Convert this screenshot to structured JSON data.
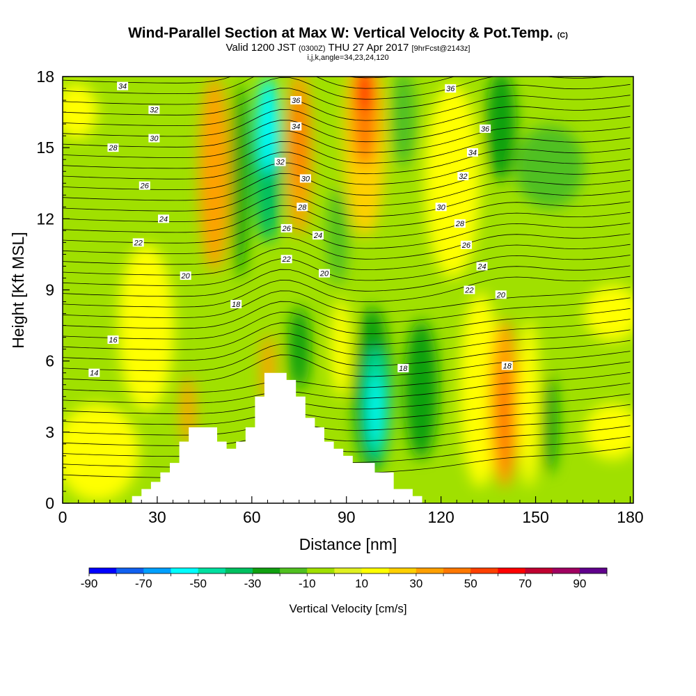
{
  "header": {
    "title": "Wind-Parallel Section at Max W: Vertical Velocity & Pot.Temp.",
    "copyright": "(C)",
    "valid_prefix": "Valid 1200 JST",
    "valid_utc": "(0300Z)",
    "valid_date": "THU 27 Apr 2017",
    "forecast_info": "[9hrFcst@2143z]",
    "params": "i,j,k,angle=34,23,24,120"
  },
  "colorbar": {
    "label": "Vertical Velocity [cm/s]",
    "tick_labels": [
      "-90",
      "-70",
      "-50",
      "-30",
      "-10",
      "10",
      "30",
      "50",
      "70",
      "90"
    ],
    "colors": [
      "#0000ff",
      "#1060f0",
      "#00a0ff",
      "#00ffff",
      "#00e0a0",
      "#00c060",
      "#10a010",
      "#50c020",
      "#a0e000",
      "#e0f020",
      "#ffff00",
      "#ffd000",
      "#ffa000",
      "#ff7800",
      "#ff4000",
      "#ff0000",
      "#c00030",
      "#a00060",
      "#60008c"
    ]
  },
  "chart_data": {
    "type": "heatmap",
    "title": "Wind-Parallel Section at Max W: Vertical Velocity & Pot.Temp.",
    "xlabel": "Distance [nm]",
    "ylabel": "Height [Kft MSL]",
    "xlim": [
      0,
      181
    ],
    "ylim": [
      0,
      18
    ],
    "x_ticks": [
      0,
      30,
      60,
      90,
      120,
      150,
      180
    ],
    "y_ticks": [
      0,
      3,
      6,
      9,
      12,
      15,
      18
    ],
    "contour_variable": "Potential temperature (C)",
    "contour_labels": [
      {
        "text": "34",
        "x": 19,
        "y": 17.6
      },
      {
        "text": "32",
        "x": 29,
        "y": 16.6
      },
      {
        "text": "30",
        "x": 29,
        "y": 15.4
      },
      {
        "text": "28",
        "x": 16,
        "y": 15.0
      },
      {
        "text": "26",
        "x": 26,
        "y": 13.4
      },
      {
        "text": "24",
        "x": 32,
        "y": 12.0
      },
      {
        "text": "22",
        "x": 24,
        "y": 11.0
      },
      {
        "text": "20",
        "x": 39,
        "y": 9.6
      },
      {
        "text": "18",
        "x": 55,
        "y": 8.4
      },
      {
        "text": "16",
        "x": 16,
        "y": 6.9
      },
      {
        "text": "14",
        "x": 10,
        "y": 5.5
      },
      {
        "text": "36",
        "x": 74,
        "y": 17.0
      },
      {
        "text": "34",
        "x": 74,
        "y": 15.9
      },
      {
        "text": "32",
        "x": 69,
        "y": 14.4
      },
      {
        "text": "30",
        "x": 77,
        "y": 13.7
      },
      {
        "text": "28",
        "x": 76,
        "y": 12.5
      },
      {
        "text": "26",
        "x": 71,
        "y": 11.6
      },
      {
        "text": "24",
        "x": 81,
        "y": 11.3
      },
      {
        "text": "22",
        "x": 71,
        "y": 10.3
      },
      {
        "text": "20",
        "x": 83,
        "y": 9.7
      },
      {
        "text": "18",
        "x": 108,
        "y": 5.7
      },
      {
        "text": "36",
        "x": 123,
        "y": 17.5
      },
      {
        "text": "36",
        "x": 134,
        "y": 15.8
      },
      {
        "text": "34",
        "x": 130,
        "y": 14.8
      },
      {
        "text": "32",
        "x": 127,
        "y": 13.8
      },
      {
        "text": "30",
        "x": 120,
        "y": 12.5
      },
      {
        "text": "28",
        "x": 126,
        "y": 11.8
      },
      {
        "text": "26",
        "x": 128,
        "y": 10.9
      },
      {
        "text": "24",
        "x": 133,
        "y": 10.0
      },
      {
        "text": "22",
        "x": 129,
        "y": 9.0
      },
      {
        "text": "20",
        "x": 139,
        "y": 8.8
      },
      {
        "text": "18",
        "x": 141,
        "y": 5.8
      }
    ],
    "terrain": [
      [
        0,
        0
      ],
      [
        22,
        0
      ],
      [
        22,
        0.3
      ],
      [
        25,
        0.3
      ],
      [
        25,
        0.6
      ],
      [
        28,
        0.6
      ],
      [
        28,
        0.9
      ],
      [
        31,
        0.9
      ],
      [
        31,
        1.3
      ],
      [
        34,
        1.3
      ],
      [
        34,
        1.7
      ],
      [
        37,
        1.7
      ],
      [
        37,
        2.6
      ],
      [
        40,
        2.6
      ],
      [
        40,
        3.2
      ],
      [
        49,
        3.2
      ],
      [
        49,
        2.6
      ],
      [
        52,
        2.6
      ],
      [
        52,
        2.3
      ],
      [
        55,
        2.3
      ],
      [
        55,
        2.6
      ],
      [
        58,
        2.6
      ],
      [
        58,
        3.2
      ],
      [
        61,
        3.2
      ],
      [
        61,
        4.5
      ],
      [
        64,
        4.5
      ],
      [
        64,
        5.5
      ],
      [
        71,
        5.5
      ],
      [
        71,
        5.2
      ],
      [
        74,
        5.2
      ],
      [
        74,
        4.5
      ],
      [
        77,
        4.5
      ],
      [
        77,
        3.6
      ],
      [
        80,
        3.6
      ],
      [
        80,
        3.2
      ],
      [
        83,
        3.2
      ],
      [
        83,
        2.6
      ],
      [
        86,
        2.6
      ],
      [
        86,
        2.3
      ],
      [
        89,
        2.3
      ],
      [
        89,
        2.0
      ],
      [
        92,
        2.0
      ],
      [
        92,
        1.7
      ],
      [
        99,
        1.7
      ],
      [
        99,
        1.3
      ],
      [
        105,
        1.3
      ],
      [
        105,
        0.6
      ],
      [
        111,
        0.6
      ],
      [
        111,
        0.3
      ],
      [
        114,
        0.3
      ],
      [
        114,
        0
      ],
      [
        181,
        0
      ]
    ]
  }
}
